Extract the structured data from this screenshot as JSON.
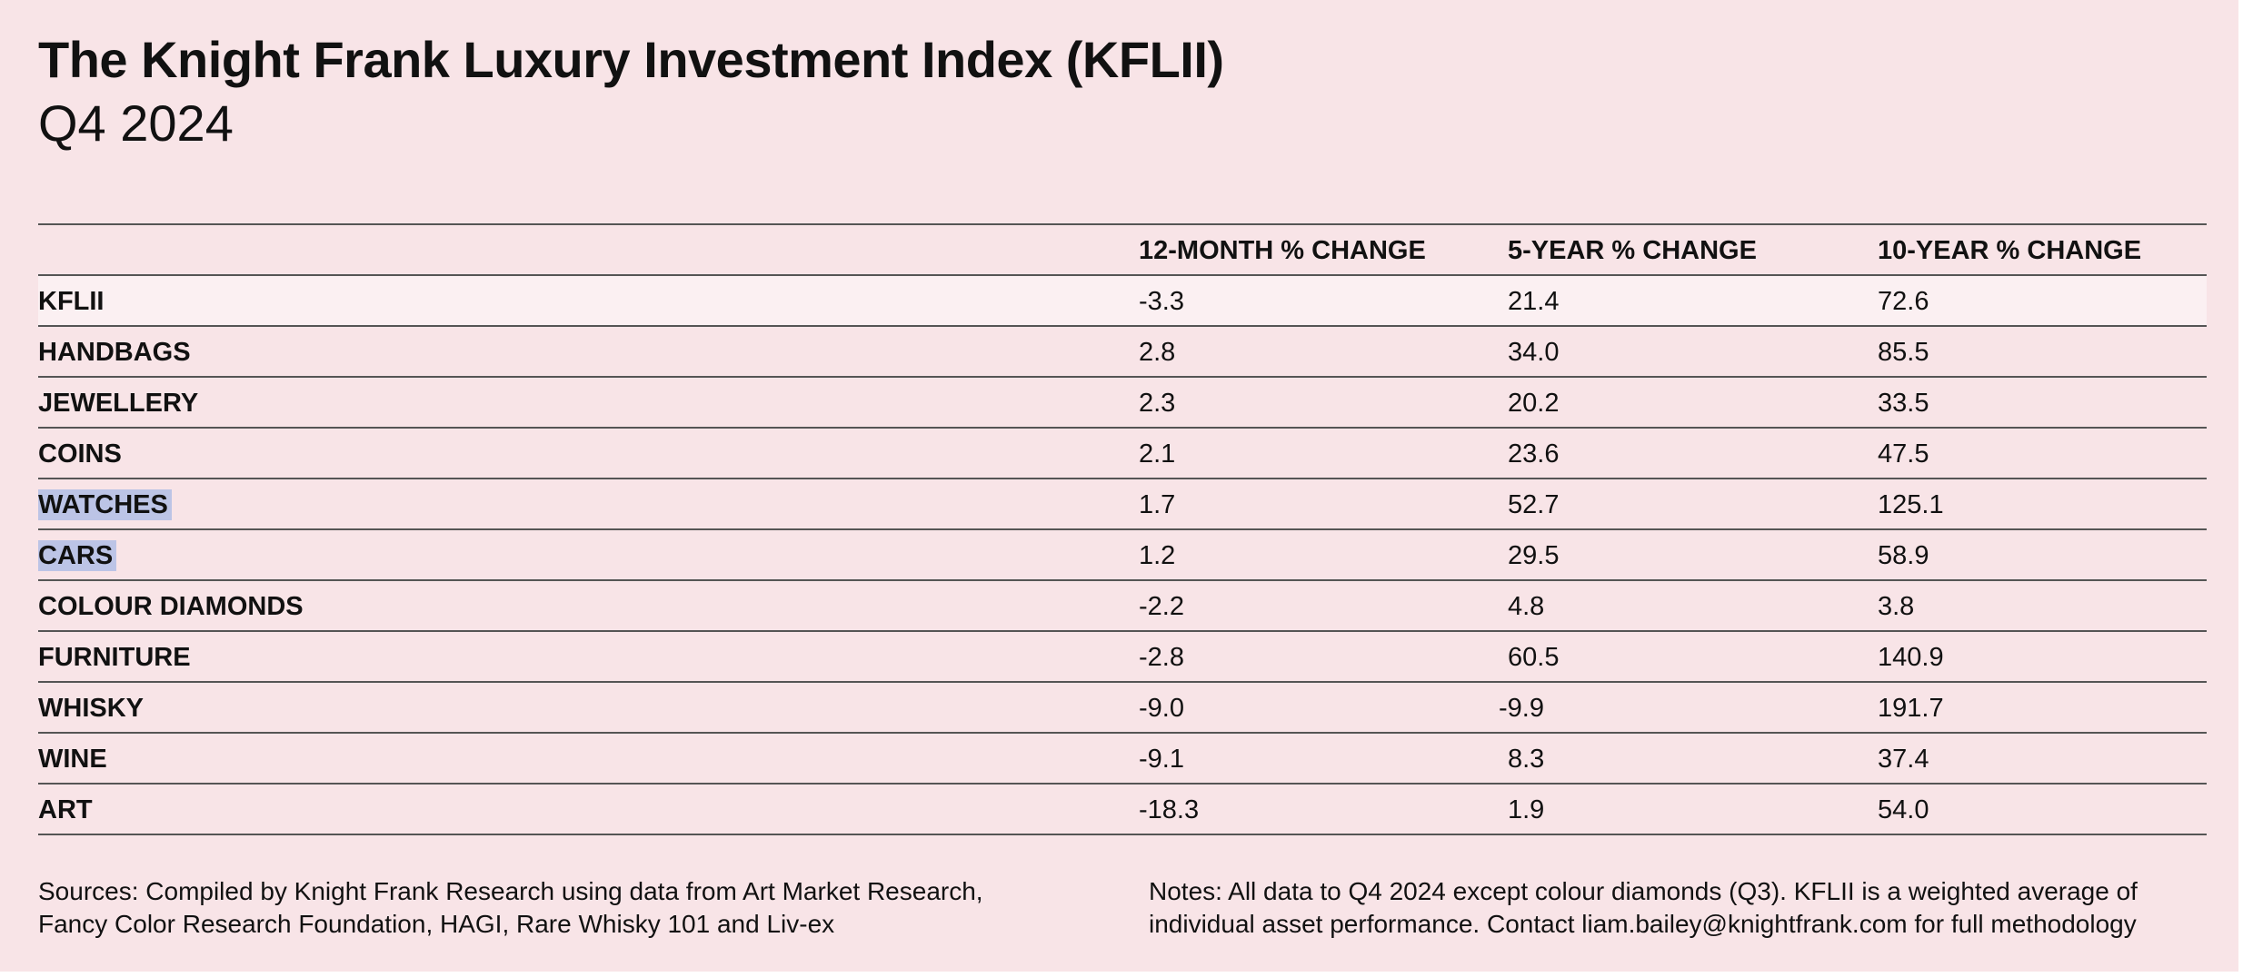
{
  "chart_data": {
    "type": "table",
    "title": "The Knight Frank Luxury Investment Index (KFLII)",
    "subtitle": "Q4 2024",
    "columns": [
      "12-MONTH % CHANGE",
      "5-YEAR % CHANGE",
      "10-YEAR % CHANGE"
    ],
    "rows": [
      {
        "category": "KFLII",
        "values": [
          "-3.3",
          "21.4",
          "72.6"
        ],
        "highlighted": true
      },
      {
        "category": "HANDBAGS",
        "values": [
          "2.8",
          "34.0",
          "85.5"
        ]
      },
      {
        "category": "JEWELLERY",
        "values": [
          "2.3",
          "20.2",
          "33.5"
        ]
      },
      {
        "category": "COINS",
        "values": [
          "2.1",
          "23.6",
          "47.5"
        ]
      },
      {
        "category": "WATCHES",
        "values": [
          "1.7",
          "52.7",
          "125.1"
        ],
        "text_selected": true
      },
      {
        "category": "CARS",
        "values": [
          "1.2",
          "29.5",
          "58.9"
        ],
        "text_selected": true
      },
      {
        "category": "COLOUR DIAMONDS",
        "values": [
          "-2.2",
          "4.8",
          "3.8"
        ]
      },
      {
        "category": "FURNITURE",
        "values": [
          "-2.8",
          "60.5",
          "140.9"
        ]
      },
      {
        "category": "WHISKY",
        "values": [
          "-9.0",
          "-9.9",
          "191.7"
        ]
      },
      {
        "category": "WINE",
        "values": [
          "-9.1",
          "8.3",
          "37.4"
        ]
      },
      {
        "category": "ART",
        "values": [
          "-18.3",
          "1.9",
          "54.0"
        ]
      }
    ],
    "sources": [
      "Sources: Compiled by Knight Frank Research using data from Art Market Research,",
      "Fancy Color Research Foundation, HAGI, Rare Whisky 101 and Liv-ex"
    ],
    "notes": [
      "Notes: All data to Q4 2024 except colour diamonds (Q3). KFLII is a weighted average of",
      "individual asset performance. Contact liam.bailey@knightfrank.com for full methodology"
    ]
  },
  "colors": {
    "background": "#f8e4e7",
    "highlight_row": "#fbf0f2",
    "text_selection": "#bcc4e6",
    "rules": "#555555",
    "text": "#111111"
  }
}
